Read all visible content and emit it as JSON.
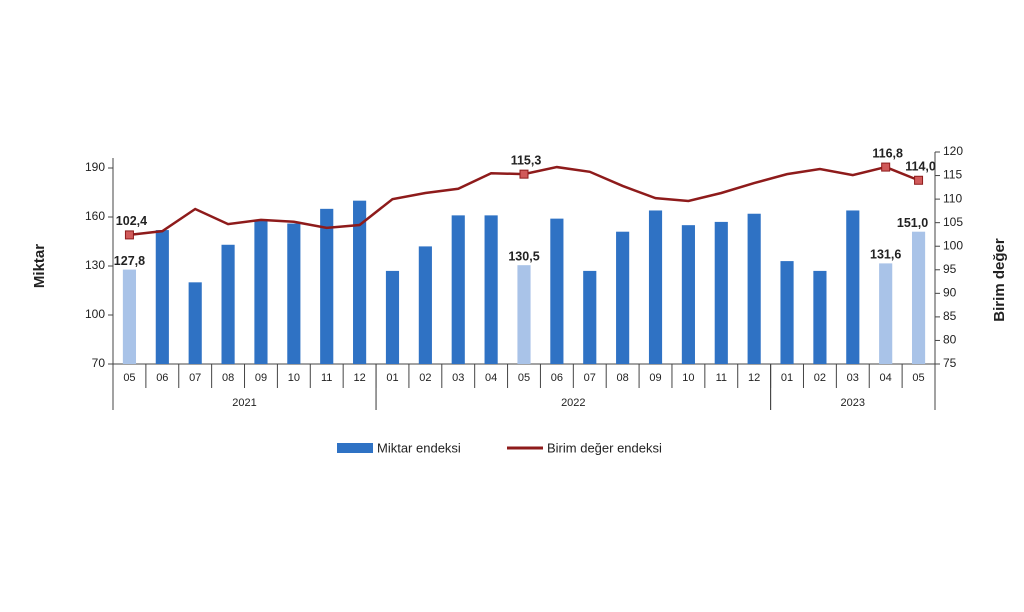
{
  "chart_data": {
    "type": "bar-line",
    "y_label": "Miktar",
    "y2_label": "Birim değer",
    "categories": [
      "05",
      "06",
      "07",
      "08",
      "09",
      "10",
      "11",
      "12",
      "01",
      "02",
      "03",
      "04",
      "05",
      "06",
      "07",
      "08",
      "09",
      "10",
      "11",
      "12",
      "01",
      "02",
      "03",
      "04",
      "05"
    ],
    "groups": [
      {
        "label": "2021",
        "count": 8
      },
      {
        "label": "2022",
        "count": 12
      },
      {
        "label": "2023",
        "count": 5
      }
    ],
    "ylim": [
      70,
      190
    ],
    "yticks": [
      70,
      100,
      130,
      160,
      190
    ],
    "y2lim": [
      75,
      120
    ],
    "y2ticks": [
      75,
      80,
      85,
      90,
      95,
      100,
      105,
      110,
      115,
      120
    ],
    "series": [
      {
        "name": "Miktar endeksi",
        "type": "bar",
        "color": "#2f72c4",
        "colors": [
          "#a9c3e8",
          "#2f72c4",
          "#2f72c4",
          "#2f72c4",
          "#2f72c4",
          "#2f72c4",
          "#2f72c4",
          "#2f72c4",
          "#2f72c4",
          "#2f72c4",
          "#2f72c4",
          "#2f72c4",
          "#a9c3e8",
          "#2f72c4",
          "#2f72c4",
          "#2f72c4",
          "#2f72c4",
          "#2f72c4",
          "#2f72c4",
          "#2f72c4",
          "#2f72c4",
          "#2f72c4",
          "#2f72c4",
          "#a9c3e8",
          "#a9c3e8"
        ],
        "values": [
          127.8,
          152,
          120,
          143,
          158,
          156,
          165,
          170,
          127,
          142,
          161,
          161,
          130.5,
          159,
          127,
          151,
          164,
          155,
          157,
          162,
          133,
          127,
          164,
          131.6,
          151.0
        ],
        "value_labels": [
          "127,8",
          null,
          null,
          null,
          null,
          null,
          null,
          null,
          null,
          null,
          null,
          null,
          "130,5",
          null,
          null,
          null,
          null,
          null,
          null,
          null,
          null,
          null,
          null,
          "131,6",
          "151,0"
        ]
      },
      {
        "name": "Birim değer endeksi",
        "type": "line",
        "axis": "y2",
        "color": "#8e1b1b",
        "marker_color": "#d05a5a",
        "values": [
          102.4,
          103.2,
          107.9,
          104.7,
          105.6,
          105.2,
          103.9,
          104.5,
          110,
          111.3,
          112.2,
          115.5,
          115.3,
          116.8,
          115.8,
          112.8,
          110.2,
          109.6,
          111.3,
          113.4,
          115.3,
          116.4,
          115.1,
          116.8,
          114.0
        ],
        "value_labels": [
          "102,4",
          null,
          null,
          null,
          null,
          null,
          null,
          null,
          null,
          null,
          null,
          null,
          "115,3",
          null,
          null,
          null,
          null,
          null,
          null,
          null,
          null,
          null,
          null,
          "116,8",
          "114,0"
        ]
      }
    ]
  }
}
